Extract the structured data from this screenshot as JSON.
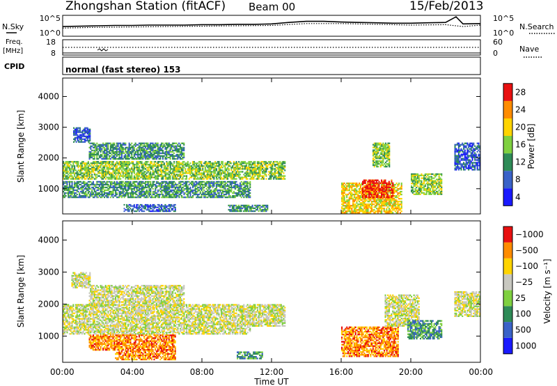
{
  "header": {
    "station": "Zhongshan Station (fitACF)",
    "beam": "Beam 00",
    "date": "15/Feb/2013"
  },
  "strip_labels": {
    "nsky": "N.Sky",
    "nsearch": "N.Search",
    "freq": "Freq.",
    "freq_unit": "[MHz]",
    "nave": "Nave",
    "cpid": "CPID",
    "cpid_value": "normal (fast stereo) 153"
  },
  "chart_data": [
    {
      "type": "line",
      "name": "noise",
      "x_unit": "hours UT",
      "ylim_labels": [
        "10^0",
        "10^5"
      ],
      "right_labels": [
        "10^0",
        "10^5"
      ],
      "series": [
        {
          "name": "N.Sky",
          "x": [
            0,
            1,
            2,
            3,
            4,
            5,
            6,
            7,
            8,
            9,
            10,
            11,
            12,
            13,
            14,
            15,
            16,
            17,
            18,
            19,
            20,
            21,
            22,
            22.6,
            23,
            24
          ],
          "values": [
            2.2,
            2.3,
            2.4,
            2.5,
            2.5,
            2.6,
            2.6,
            2.6,
            2.7,
            2.7,
            2.8,
            2.8,
            2.9,
            3.3,
            3.6,
            3.6,
            3.4,
            3.3,
            3.2,
            3.1,
            3.1,
            3.2,
            3.3,
            4.8,
            2.9,
            3.0
          ]
        },
        {
          "name": "N.Search",
          "x": [
            0,
            2,
            4,
            6,
            8,
            10,
            12,
            14,
            16,
            18,
            20,
            22,
            23,
            24
          ],
          "values": [
            1.8,
            2.0,
            2.1,
            2.2,
            2.3,
            2.4,
            2.5,
            3.0,
            3.0,
            2.8,
            2.6,
            2.7,
            2.2,
            2.6
          ]
        }
      ]
    },
    {
      "type": "line",
      "name": "frequency-nave",
      "left_ticks": [
        8,
        18
      ],
      "right_ticks": [
        0,
        60
      ],
      "series": [
        {
          "name": "Freq.",
          "x": [
            0,
            24
          ],
          "values": [
            10,
            10
          ]
        },
        {
          "name": "Nave",
          "x": [
            0,
            24
          ],
          "values": [
            33,
            33
          ]
        }
      ]
    },
    {
      "type": "heatmap",
      "name": "power",
      "ylabel": "Slant Range [km]",
      "ylim": [
        180,
        4600
      ],
      "yticks": [
        1000,
        2000,
        3000,
        4000
      ],
      "xlim": [
        0,
        24
      ],
      "xtick_labels": [
        "00:00",
        "04:00",
        "08:00",
        "12:00",
        "16:00",
        "20:00",
        "00:00"
      ],
      "colorbar_label": "Power [dB]",
      "colorbar_ticks": [
        "4",
        "8",
        "12",
        "16",
        "20",
        "24",
        "28"
      ],
      "colors": [
        "#1a1aff",
        "#3a62c8",
        "#2e8b57",
        "#7fd040",
        "#ffd400",
        "#ff8c00",
        "#e81010"
      ],
      "regions": [
        {
          "t0": 0.0,
          "t1": 12.8,
          "r0": 1300,
          "r1": 1900,
          "level": 3
        },
        {
          "t0": 0.0,
          "t1": 10.8,
          "r0": 700,
          "r1": 1250,
          "level": 2
        },
        {
          "t0": 1.5,
          "t1": 7.0,
          "r0": 1950,
          "r1": 2500,
          "level": 2
        },
        {
          "t0": 0.6,
          "t1": 1.6,
          "r0": 2500,
          "r1": 3000,
          "level": 1
        },
        {
          "t0": 3.5,
          "t1": 6.5,
          "r0": 250,
          "r1": 500,
          "level": 1
        },
        {
          "t0": 9.5,
          "t1": 11.8,
          "r0": 250,
          "r1": 480,
          "level": 2
        },
        {
          "t0": 16.0,
          "t1": 19.5,
          "r0": 200,
          "r1": 1200,
          "level": 4
        },
        {
          "t0": 17.2,
          "t1": 19.0,
          "r0": 700,
          "r1": 1300,
          "level": 6
        },
        {
          "t0": 17.8,
          "t1": 18.8,
          "r0": 1700,
          "r1": 2500,
          "level": 3
        },
        {
          "t0": 20.0,
          "t1": 21.8,
          "r0": 800,
          "r1": 1500,
          "level": 3
        },
        {
          "t0": 22.5,
          "t1": 24.0,
          "r0": 1600,
          "r1": 2500,
          "level": 1
        }
      ]
    },
    {
      "type": "heatmap",
      "name": "velocity",
      "xlabel": "Time UT",
      "ylabel": "Slant Range [km]",
      "ylim": [
        180,
        4600
      ],
      "yticks": [
        1000,
        2000,
        3000,
        4000
      ],
      "xlim": [
        0,
        24
      ],
      "xtick_labels": [
        "00:00",
        "04:00",
        "08:00",
        "12:00",
        "16:00",
        "20:00",
        "00:00"
      ],
      "colorbar_label": "Velocity [m s⁻¹]",
      "colorbar_ticks": [
        "1000",
        "500",
        "100",
        "25",
        "−25",
        "−100",
        "−500",
        "−1000"
      ],
      "colors": [
        "#1a1aff",
        "#3a62c8",
        "#2e8b57",
        "#7fd040",
        "#c8c8c0",
        "#ffd400",
        "#ff8c00",
        "#e81010"
      ],
      "regions": [
        {
          "t0": 0.0,
          "t1": 12.8,
          "r0": 1300,
          "r1": 2000,
          "level": 4
        },
        {
          "t0": 1.5,
          "t1": 7.0,
          "r0": 1950,
          "r1": 2600,
          "level": 4
        },
        {
          "t0": 0.5,
          "t1": 1.6,
          "r0": 2500,
          "r1": 3000,
          "level": 4
        },
        {
          "t0": 0.0,
          "t1": 10.8,
          "r0": 1050,
          "r1": 1300,
          "level": 4
        },
        {
          "t0": 1.5,
          "t1": 6.5,
          "r0": 550,
          "r1": 1050,
          "level": 6
        },
        {
          "t0": 3.0,
          "t1": 6.5,
          "r0": 250,
          "r1": 550,
          "level": 6
        },
        {
          "t0": 10.0,
          "t1": 11.5,
          "r0": 280,
          "r1": 520,
          "level": 2
        },
        {
          "t0": 16.0,
          "t1": 19.3,
          "r0": 350,
          "r1": 1300,
          "level": 6
        },
        {
          "t0": 18.5,
          "t1": 20.5,
          "r0": 1300,
          "r1": 2300,
          "level": 4
        },
        {
          "t0": 19.8,
          "t1": 21.8,
          "r0": 900,
          "r1": 1500,
          "level": 2
        },
        {
          "t0": 22.5,
          "t1": 24.0,
          "r0": 1600,
          "r1": 2400,
          "level": 4
        }
      ]
    }
  ]
}
